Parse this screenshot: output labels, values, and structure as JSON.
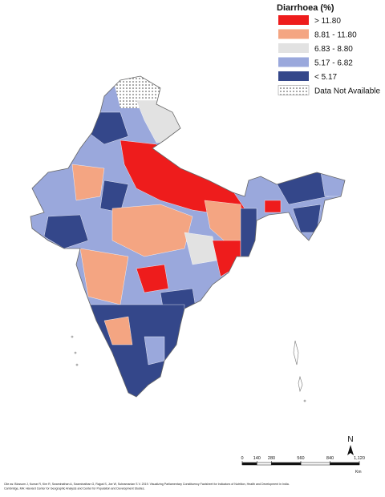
{
  "legend": {
    "title": "Diarrhoea (%)",
    "items": [
      {
        "label": "> 11.80",
        "color": "#ee1c1c"
      },
      {
        "label": "8.81 - 11.80",
        "color": "#f4a582"
      },
      {
        "label": "6.83 - 8.80",
        "color": "#e2e2e2"
      },
      {
        "label": "5.17 - 6.82",
        "color": "#9aa8dc"
      },
      {
        "label": "< 5.17",
        "color": "#34478a"
      },
      {
        "label": "Data Not Available"
      }
    ]
  },
  "north_arrow": "N",
  "scale_bar": {
    "ticks": [
      0,
      140,
      280,
      560,
      840,
      {
        "value": 1120,
        "label": "1,120"
      }
    ],
    "unit": "Km"
  },
  "citation": [
    "Cite as: Blossom J, Kumar R, Kim R, Swaminathan A, Swaminathan G, Rajpal S, Joe W, Subramanian S V. 2019. Visualizing Parliamentary Constituency Factsheet for Indicators of Nutrition, Health and Development in India.",
    "Cambridge, MA: Harvard Center for Geographic Analysis and Center for Population and Development Studies."
  ]
}
